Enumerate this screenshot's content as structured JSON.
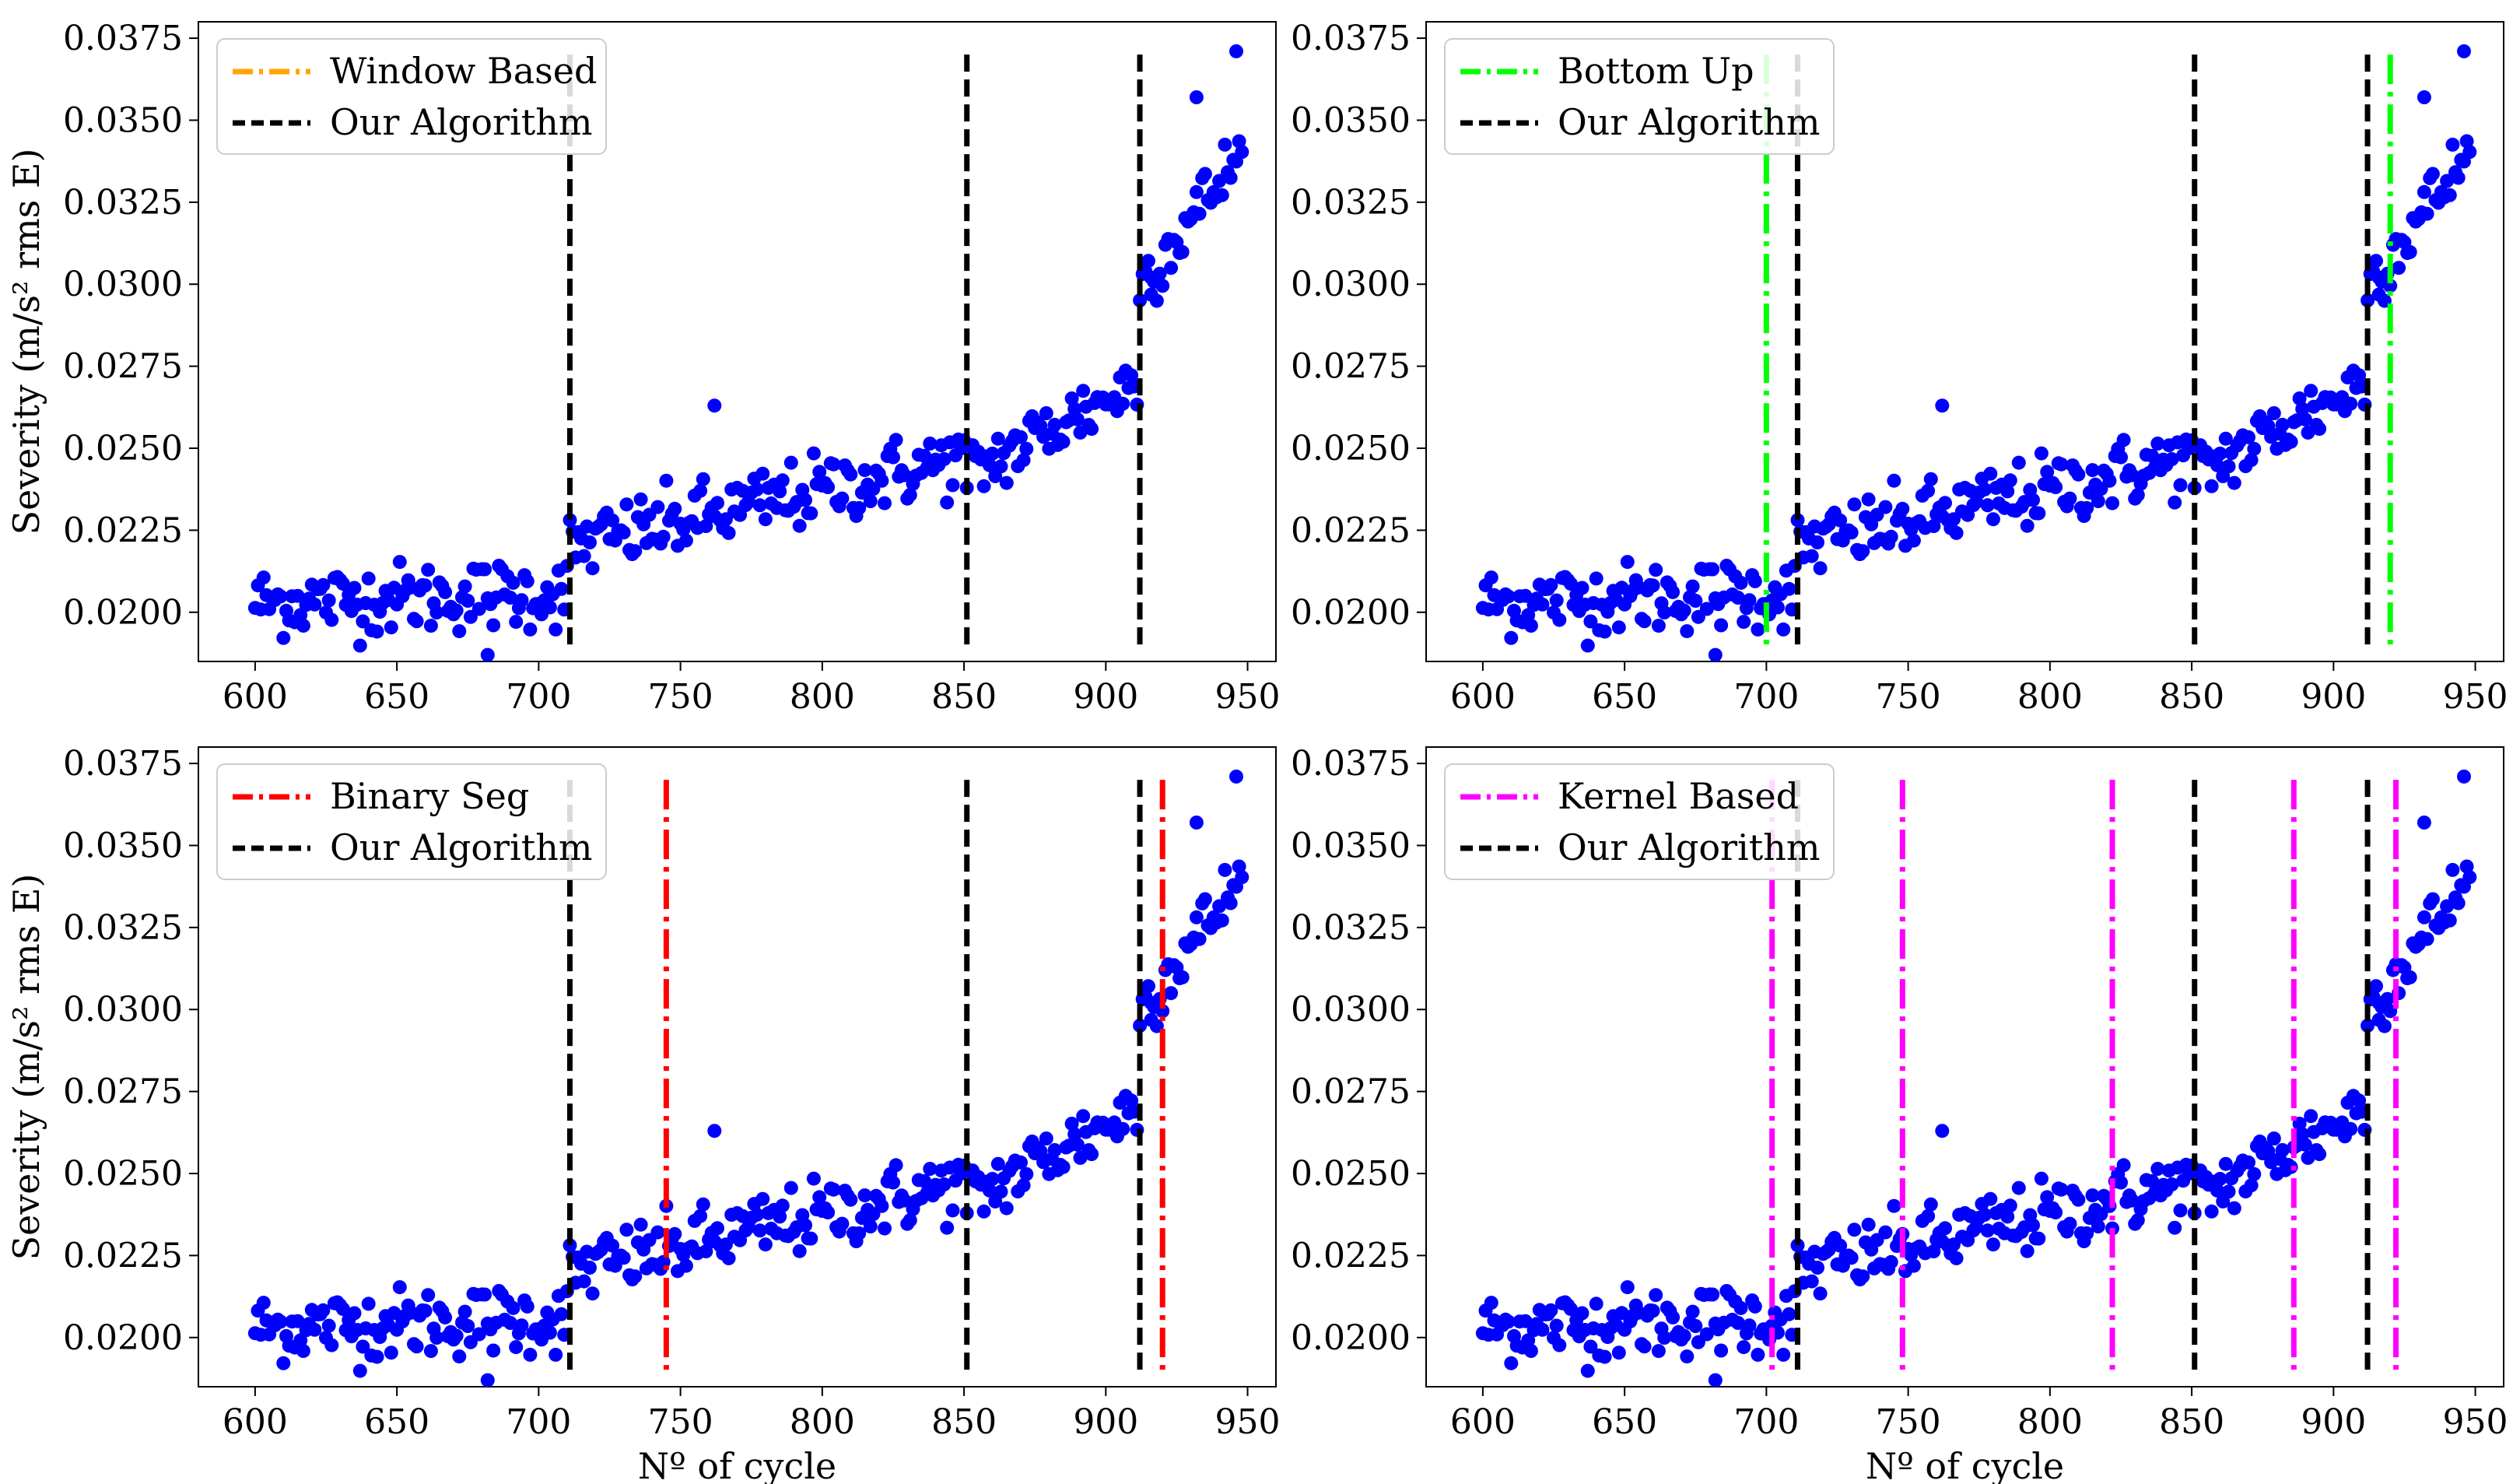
{
  "chart_data": [
    {
      "type": "scatter",
      "panel": "top-left",
      "xlabel": "",
      "ylabel": "Severity (m/s² rms E)",
      "xlim": [
        580,
        960
      ],
      "ylim": [
        0.0185,
        0.038
      ],
      "xticks": [
        "600",
        "650",
        "700",
        "750",
        "800",
        "850",
        "900",
        "950"
      ],
      "yticks": [
        "0.0200",
        "0.0225",
        "0.0250",
        "0.0275",
        "0.0300",
        "0.0325",
        "0.0350",
        "0.0375"
      ],
      "legend": {
        "position": "top-left",
        "entries": [
          {
            "label": "Window Based",
            "color": "#ffa500",
            "style": "dashdot"
          },
          {
            "label": "Our Algorithm",
            "color": "#000000",
            "style": "dashed"
          }
        ]
      },
      "method_changepoints": [],
      "method_color": "#ffa500",
      "our_changepoints": [
        711,
        851,
        912
      ]
    },
    {
      "type": "scatter",
      "panel": "top-right",
      "xlabel": "",
      "ylabel": "",
      "xlim": [
        580,
        960
      ],
      "ylim": [
        0.0185,
        0.038
      ],
      "xticks": [
        "600",
        "650",
        "700",
        "750",
        "800",
        "850",
        "900",
        "950"
      ],
      "yticks": [
        "0.0200",
        "0.0225",
        "0.0250",
        "0.0275",
        "0.0300",
        "0.0325",
        "0.0350",
        "0.0375"
      ],
      "legend": {
        "position": "top-left",
        "entries": [
          {
            "label": "Bottom Up",
            "color": "#00ff00",
            "style": "dashdot"
          },
          {
            "label": "Our Algorithm",
            "color": "#000000",
            "style": "dashed"
          }
        ]
      },
      "method_changepoints": [
        700,
        920
      ],
      "method_color": "#00ff00",
      "our_changepoints": [
        711,
        851,
        912
      ]
    },
    {
      "type": "scatter",
      "panel": "bottom-left",
      "xlabel": "Nº of cycle",
      "ylabel": "Severity (m/s² rms E)",
      "xlim": [
        580,
        960
      ],
      "ylim": [
        0.0185,
        0.038
      ],
      "xticks": [
        "600",
        "650",
        "700",
        "750",
        "800",
        "850",
        "900",
        "950"
      ],
      "yticks": [
        "0.0200",
        "0.0225",
        "0.0250",
        "0.0275",
        "0.0300",
        "0.0325",
        "0.0350",
        "0.0375"
      ],
      "legend": {
        "position": "top-left",
        "entries": [
          {
            "label": "Binary Seg",
            "color": "#ff0000",
            "style": "dashdot"
          },
          {
            "label": "Our Algorithm",
            "color": "#000000",
            "style": "dashed"
          }
        ]
      },
      "method_changepoints": [
        745,
        920
      ],
      "method_color": "#ff0000",
      "our_changepoints": [
        711,
        851,
        912
      ]
    },
    {
      "type": "scatter",
      "panel": "bottom-right",
      "xlabel": "Nº of cycle",
      "ylabel": "",
      "xlim": [
        580,
        960
      ],
      "ylim": [
        0.0185,
        0.038
      ],
      "xticks": [
        "600",
        "650",
        "700",
        "750",
        "800",
        "850",
        "900",
        "950"
      ],
      "yticks": [
        "0.0200",
        "0.0225",
        "0.0250",
        "0.0275",
        "0.0300",
        "0.0325",
        "0.0350",
        "0.0375"
      ],
      "legend": {
        "position": "top-left",
        "entries": [
          {
            "label": "Kernel Based",
            "color": "#ff00ff",
            "style": "dashdot"
          },
          {
            "label": "Our Algorithm",
            "color": "#000000",
            "style": "dashed"
          }
        ]
      },
      "method_changepoints": [
        702,
        748,
        822,
        886,
        922
      ],
      "method_color": "#ff00ff",
      "our_changepoints": [
        711,
        851,
        912
      ]
    }
  ],
  "scatter_series": {
    "name": "severity",
    "color": "#0000ff",
    "x_start": 600,
    "x_end": 948,
    "segment_means": [
      {
        "from": 600,
        "to": 710,
        "y_from": 0.0203,
        "y_to": 0.0206
      },
      {
        "from": 711,
        "to": 850,
        "y_from": 0.022,
        "y_to": 0.0247
      },
      {
        "from": 851,
        "to": 911,
        "y_from": 0.0242,
        "y_to": 0.027
      },
      {
        "from": 912,
        "to": 948,
        "y_from": 0.03,
        "y_to": 0.034
      }
    ],
    "noise": 0.0009,
    "highlighted_points": [
      {
        "x": 682,
        "y": 0.0187
      },
      {
        "x": 762,
        "y": 0.0263
      },
      {
        "x": 946,
        "y": 0.0371
      },
      {
        "x": 932,
        "y": 0.0357
      },
      {
        "x": 916,
        "y": 0.0302
      }
    ]
  }
}
